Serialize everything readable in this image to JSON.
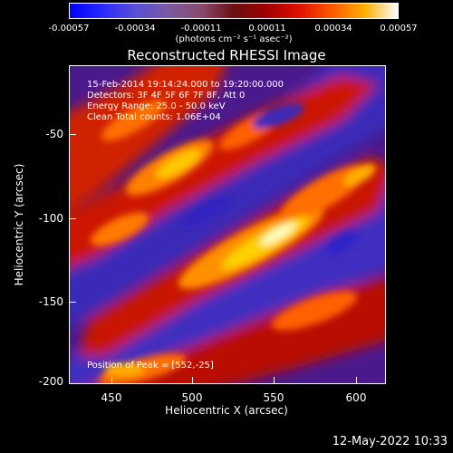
{
  "colorbar": {
    "ticks": [
      "-0.00057",
      "-0.00034",
      "-0.00011",
      "0.00011",
      "0.00034",
      "0.00057"
    ],
    "units": "(photons cm⁻² s⁻¹ asec⁻²)"
  },
  "title": "Reconstructed RHESSI Image",
  "info": {
    "time": "15-Feb-2014 19:14:24.000 to 19:20:00.000",
    "detectors": "Detectors: 3F 4F 5F 6F 7F 8F, Att 0",
    "energy": "Energy Range: 25.0 - 50.0 keV",
    "clean": "Clean    Total counts: 1.06E+04",
    "peak": "Position of Peak = [552,-25]"
  },
  "axes": {
    "xlabel": "Heliocentric X (arcsec)",
    "ylabel": "Heliocentric Y (arcsec)",
    "xticks": [
      "450",
      "500",
      "550",
      "600"
    ],
    "yticks": [
      "-50",
      "-100",
      "-150",
      "-200"
    ]
  },
  "date": "12-May-2022 10:33",
  "colors": {
    "background": "#000000",
    "foreground": "#ffffff"
  }
}
